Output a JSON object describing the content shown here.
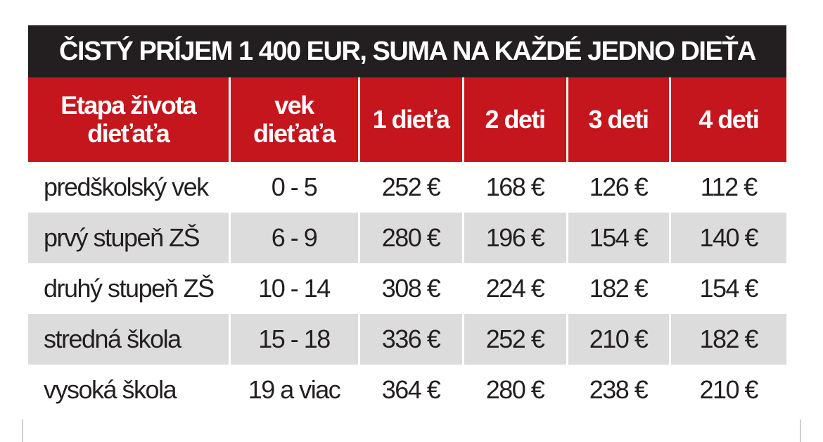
{
  "title": "ČISTÝ PRÍJEM 1 400 EUR, SUMA NA KAŽDÉ JEDNO DIEŤA",
  "headers": [
    "Etapa života dieťaťa",
    "vek dieťaťa",
    "1 dieťa",
    "2 deti",
    "3 deti",
    "4 deti"
  ],
  "rows": [
    [
      "predškolský vek",
      "0 - 5",
      "252 €",
      "168 €",
      "126 €",
      "112 €"
    ],
    [
      "prvý stupeň ZŠ",
      "6 - 9",
      "280 €",
      "196 €",
      "154 €",
      "140 €"
    ],
    [
      "druhý stupeň ZŠ",
      "10 - 14",
      "308 €",
      "224 €",
      "182 €",
      "154 €"
    ],
    [
      "stredná škola",
      "15 - 18",
      "336 €",
      "252 €",
      "210 €",
      "182 €"
    ],
    [
      "vysoká škola",
      "19 a viac",
      "364 €",
      "280 €",
      "238 €",
      "210 €"
    ]
  ],
  "colors": {
    "title_bg": "#231f20",
    "header_bg": "#c4161c",
    "alt_row_bg": "#dcdcdd",
    "text": "#231f20"
  }
}
